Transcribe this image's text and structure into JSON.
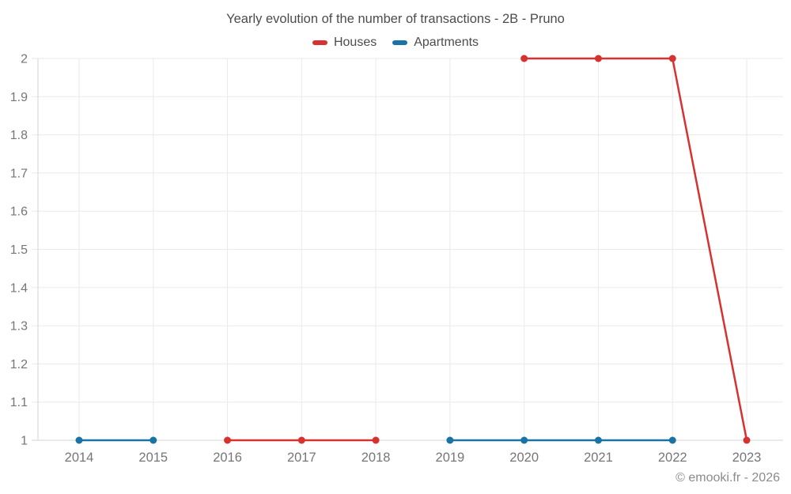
{
  "page": {
    "title": "Yearly evolution of the number of transactions - 2B - Pruno",
    "footer": "© emooki.fr - 2026"
  },
  "legend": {
    "items": [
      {
        "label": "Houses",
        "color": "#d63230"
      },
      {
        "label": "Apartments",
        "color": "#1a73a5"
      }
    ]
  },
  "chart_data": {
    "type": "line",
    "title": "Yearly evolution of the number of transactions - 2B - Pruno",
    "categories": [
      "2014",
      "2015",
      "2016",
      "2017",
      "2018",
      "2019",
      "2020",
      "2021",
      "2022",
      "2023"
    ],
    "series": [
      {
        "name": "Houses",
        "color": "#d63230",
        "values": [
          null,
          null,
          1,
          1,
          1,
          null,
          2,
          2,
          2,
          1
        ]
      },
      {
        "name": "Apartments",
        "color": "#1a73a5",
        "values": [
          1,
          1,
          null,
          null,
          null,
          1,
          1,
          1,
          1,
          null
        ]
      }
    ],
    "ylim": [
      1,
      2
    ],
    "ytick_labels": [
      "1",
      "1.1",
      "1.2",
      "1.3",
      "1.4",
      "1.5",
      "1.6",
      "1.7",
      "1.8",
      "1.9",
      "2"
    ],
    "xlabel": "",
    "ylabel": "",
    "grid": true,
    "legend_position": "top",
    "marker": "circle"
  },
  "colors": {
    "grid": "#eaeaea",
    "axis": "#d4d4d4",
    "title_text": "#4c4c4c",
    "tick_text": "#767676",
    "footer_text": "#8b8b8b",
    "background": "#ffffff"
  }
}
